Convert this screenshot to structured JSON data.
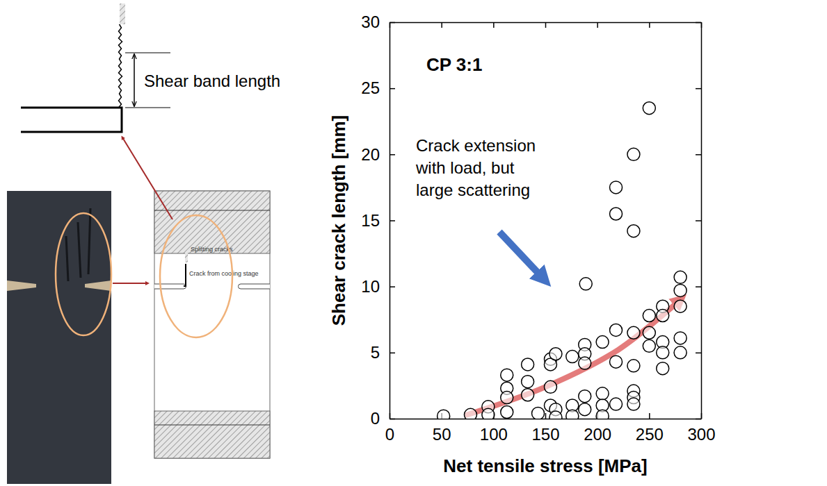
{
  "chart_data": {
    "type": "scatter",
    "title": "CP 3:1",
    "annotation": [
      "Crack extension",
      "with load,  but",
      "large scattering"
    ],
    "x_label": "Net tensile stress [MPa]",
    "y_label": "Shear crack length [mm]",
    "x": [
      52,
      78,
      95,
      95,
      113,
      113,
      113,
      113,
      133,
      133,
      133,
      143,
      155,
      155,
      155,
      155,
      160,
      160,
      160,
      176,
      176,
      176,
      188,
      188,
      188,
      188,
      188,
      189,
      205,
      205,
      205,
      205,
      218,
      218,
      218,
      218,
      218,
      235,
      235,
      235,
      235,
      235,
      235,
      235,
      250,
      250,
      250,
      250,
      263,
      263,
      263,
      263,
      263,
      280,
      280,
      280,
      280,
      280
    ],
    "values": [
      0.2,
      0.3,
      0.9,
      0.3,
      3.3,
      2.3,
      1.6,
      0.5,
      4.1,
      2.8,
      1.8,
      0.4,
      4.5,
      4.1,
      2.4,
      1.0,
      4.9,
      0.7,
      0.1,
      4.7,
      1.0,
      0.2,
      5.6,
      4.9,
      4.2,
      1.7,
      0.7,
      10.2,
      5.8,
      1.9,
      1.0,
      0.2,
      17.5,
      15.5,
      6.7,
      4.3,
      1.1,
      20.0,
      14.2,
      6.5,
      4.0,
      2.1,
      1.6,
      1.1,
      23.5,
      7.8,
      6.5,
      5.5,
      8.5,
      7.8,
      5.8,
      5.0,
      3.8,
      10.7,
      9.7,
      8.5,
      6.1,
      5.0
    ],
    "trend": {
      "x": [
        75,
        150,
        220,
        280
      ],
      "values": [
        0.3,
        2.4,
        5.2,
        9.0
      ]
    },
    "color": "#000000",
    "marker": "circle-open",
    "xlim": [
      0,
      300
    ],
    "xticks": [
      0,
      50,
      100,
      150,
      200,
      250,
      300
    ],
    "ylim": [
      0,
      30
    ],
    "yticks": [
      0,
      5,
      10,
      15,
      20,
      25,
      30
    ],
    "grid": false
  },
  "diagram": {
    "shear_band_label": "Shear band length",
    "splitting_cracks_label": "Splitting cracks",
    "cooling_crack_label": "Crack from cooling stage"
  }
}
